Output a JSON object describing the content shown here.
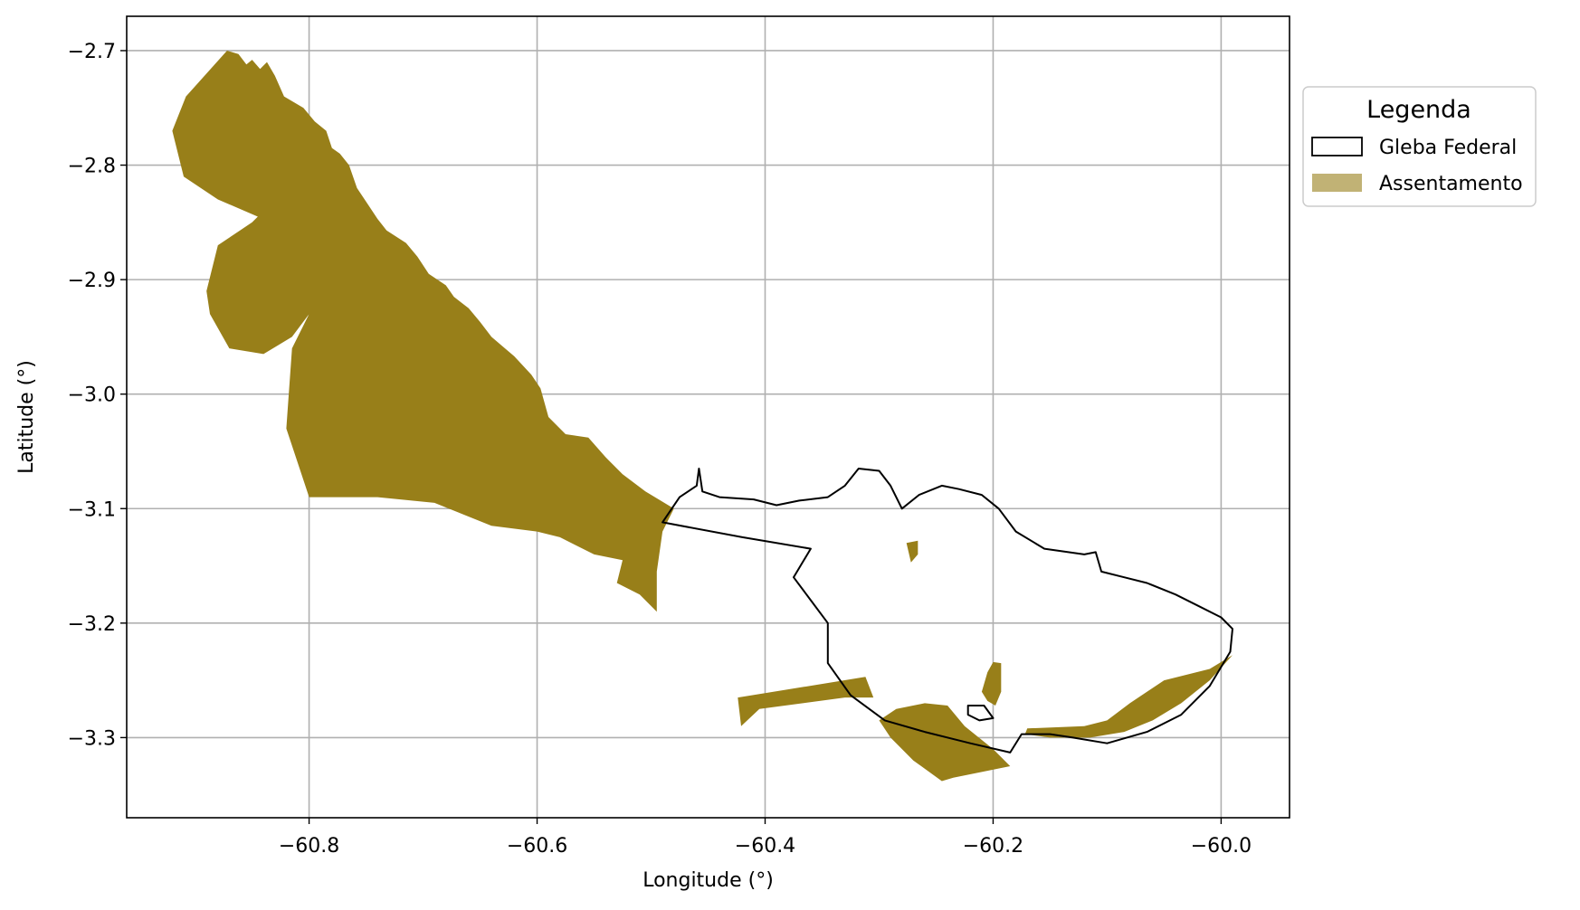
{
  "chart_data": {
    "type": "map",
    "xlabel": "Longitude (°)",
    "ylabel": "Latitude (°)",
    "xlim": [
      -60.96,
      -59.94
    ],
    "ylim": [
      -3.37,
      -2.67
    ],
    "xticks": [
      -60.8,
      -60.6,
      -60.4,
      -60.2,
      -60.0
    ],
    "yticks": [
      -2.7,
      -2.8,
      -2.9,
      -3.0,
      -3.1,
      -3.2,
      -3.3
    ],
    "xtick_labels": [
      "−60.8",
      "−60.6",
      "−60.4",
      "−60.2",
      "−60.0"
    ],
    "ytick_labels": [
      "−2.7",
      "−2.8",
      "−2.9",
      "−3.0",
      "−3.1",
      "−3.2",
      "−3.3"
    ],
    "grid": true,
    "legend": {
      "title": "Legenda",
      "placement": "outside-right-top",
      "entries": [
        {
          "label": "Gleba Federal",
          "style": "outline",
          "color": "#000000"
        },
        {
          "label": "Assentamento",
          "style": "fill",
          "color": "#987f19"
        }
      ]
    },
    "layers": [
      {
        "name": "Assentamento",
        "fill": "#987f19",
        "polygons": [
          [
            [
              -60.872,
              -2.7
            ],
            [
              -60.862,
              -2.703
            ],
            [
              -60.855,
              -2.712
            ],
            [
              -60.85,
              -2.708
            ],
            [
              -60.843,
              -2.716
            ],
            [
              -60.837,
              -2.71
            ],
            [
              -60.83,
              -2.722
            ],
            [
              -60.822,
              -2.74
            ],
            [
              -60.805,
              -2.75
            ],
            [
              -60.795,
              -2.762
            ],
            [
              -60.785,
              -2.77
            ],
            [
              -60.78,
              -2.785
            ],
            [
              -60.773,
              -2.79
            ],
            [
              -60.765,
              -2.8
            ],
            [
              -60.758,
              -2.82
            ],
            [
              -60.748,
              -2.835
            ],
            [
              -60.74,
              -2.847
            ],
            [
              -60.732,
              -2.857
            ],
            [
              -60.715,
              -2.868
            ],
            [
              -60.705,
              -2.88
            ],
            [
              -60.695,
              -2.895
            ],
            [
              -60.68,
              -2.905
            ],
            [
              -60.673,
              -2.915
            ],
            [
              -60.66,
              -2.925
            ],
            [
              -60.65,
              -2.937
            ],
            [
              -60.64,
              -2.95
            ],
            [
              -60.62,
              -2.967
            ],
            [
              -60.605,
              -2.983
            ],
            [
              -60.597,
              -2.995
            ],
            [
              -60.59,
              -3.02
            ],
            [
              -60.575,
              -3.035
            ],
            [
              -60.555,
              -3.038
            ],
            [
              -60.54,
              -3.055
            ],
            [
              -60.525,
              -3.07
            ],
            [
              -60.505,
              -3.085
            ],
            [
              -60.48,
              -3.1
            ],
            [
              -60.49,
              -3.12
            ],
            [
              -60.495,
              -3.155
            ],
            [
              -60.495,
              -3.19
            ],
            [
              -60.51,
              -3.175
            ],
            [
              -60.53,
              -3.165
            ],
            [
              -60.525,
              -3.145
            ],
            [
              -60.55,
              -3.14
            ],
            [
              -60.58,
              -3.125
            ],
            [
              -60.6,
              -3.12
            ],
            [
              -60.64,
              -3.115
            ],
            [
              -60.69,
              -3.095
            ],
            [
              -60.74,
              -3.09
            ],
            [
              -60.8,
              -3.09
            ],
            [
              -60.82,
              -3.03
            ],
            [
              -60.815,
              -2.96
            ],
            [
              -60.8,
              -2.93
            ],
            [
              -60.815,
              -2.95
            ],
            [
              -60.84,
              -2.965
            ],
            [
              -60.87,
              -2.96
            ],
            [
              -60.887,
              -2.93
            ],
            [
              -60.89,
              -2.91
            ],
            [
              -60.88,
              -2.87
            ],
            [
              -60.85,
              -2.85
            ],
            [
              -60.845,
              -2.845
            ],
            [
              -60.88,
              -2.83
            ],
            [
              -60.91,
              -2.81
            ],
            [
              -60.92,
              -2.77
            ],
            [
              -60.908,
              -2.74
            ]
          ],
          [
            [
              -60.424,
              -3.265
            ],
            [
              -60.312,
              -3.247
            ],
            [
              -60.305,
              -3.265
            ],
            [
              -60.33,
              -3.265
            ],
            [
              -60.405,
              -3.275
            ],
            [
              -60.421,
              -3.29
            ]
          ],
          [
            [
              -60.276,
              -3.13
            ],
            [
              -60.266,
              -3.128
            ],
            [
              -60.266,
              -3.14
            ],
            [
              -60.272,
              -3.147
            ]
          ],
          [
            [
              -60.2,
              -3.234
            ],
            [
              -60.193,
              -3.235
            ],
            [
              -60.193,
              -3.26
            ],
            [
              -60.198,
              -3.272
            ],
            [
              -60.205,
              -3.268
            ],
            [
              -60.21,
              -3.26
            ],
            [
              -60.205,
              -3.243
            ]
          ],
          [
            [
              -60.3,
              -3.285
            ],
            [
              -60.285,
              -3.275
            ],
            [
              -60.26,
              -3.27
            ],
            [
              -60.24,
              -3.272
            ],
            [
              -60.225,
              -3.29
            ],
            [
              -60.2,
              -3.31
            ],
            [
              -60.185,
              -3.325
            ],
            [
              -60.21,
              -3.33
            ],
            [
              -60.235,
              -3.335
            ],
            [
              -60.245,
              -3.338
            ],
            [
              -60.27,
              -3.32
            ],
            [
              -60.29,
              -3.3
            ]
          ],
          [
            [
              -60.17,
              -3.292
            ],
            [
              -60.12,
              -3.29
            ],
            [
              -60.1,
              -3.285
            ],
            [
              -60.08,
              -3.27
            ],
            [
              -60.05,
              -3.25
            ],
            [
              -60.01,
              -3.24
            ],
            [
              -59.99,
              -3.228
            ],
            [
              -60.01,
              -3.25
            ],
            [
              -60.035,
              -3.27
            ],
            [
              -60.06,
              -3.285
            ],
            [
              -60.085,
              -3.295
            ],
            [
              -60.115,
              -3.3
            ],
            [
              -60.15,
              -3.3
            ],
            [
              -60.172,
              -3.297
            ]
          ]
        ]
      },
      {
        "name": "Gleba Federal",
        "stroke": "#000000",
        "polygons": [
          [
            [
              -60.49,
              -3.112
            ],
            [
              -60.475,
              -3.09
            ],
            [
              -60.46,
              -3.08
            ],
            [
              -60.458,
              -3.065
            ],
            [
              -60.455,
              -3.085
            ],
            [
              -60.44,
              -3.09
            ],
            [
              -60.41,
              -3.092
            ],
            [
              -60.39,
              -3.097
            ],
            [
              -60.37,
              -3.093
            ],
            [
              -60.345,
              -3.09
            ],
            [
              -60.33,
              -3.08
            ],
            [
              -60.318,
              -3.065
            ],
            [
              -60.3,
              -3.067
            ],
            [
              -60.29,
              -3.08
            ],
            [
              -60.28,
              -3.1
            ],
            [
              -60.265,
              -3.088
            ],
            [
              -60.245,
              -3.08
            ],
            [
              -60.23,
              -3.083
            ],
            [
              -60.21,
              -3.088
            ],
            [
              -60.195,
              -3.1
            ],
            [
              -60.18,
              -3.12
            ],
            [
              -60.155,
              -3.135
            ],
            [
              -60.12,
              -3.14
            ],
            [
              -60.11,
              -3.138
            ],
            [
              -60.105,
              -3.155
            ],
            [
              -60.085,
              -3.16
            ],
            [
              -60.065,
              -3.165
            ],
            [
              -60.04,
              -3.175
            ],
            [
              -60.02,
              -3.185
            ],
            [
              -60.0,
              -3.195
            ],
            [
              -59.99,
              -3.205
            ],
            [
              -59.992,
              -3.225
            ],
            [
              -60.01,
              -3.255
            ],
            [
              -60.035,
              -3.28
            ],
            [
              -60.065,
              -3.295
            ],
            [
              -60.1,
              -3.305
            ],
            [
              -60.13,
              -3.3
            ],
            [
              -60.15,
              -3.297
            ],
            [
              -60.175,
              -3.297
            ],
            [
              -60.185,
              -3.313
            ],
            [
              -60.22,
              -3.305
            ],
            [
              -60.26,
              -3.295
            ],
            [
              -60.295,
              -3.285
            ],
            [
              -60.325,
              -3.263
            ],
            [
              -60.345,
              -3.235
            ],
            [
              -60.345,
              -3.2
            ],
            [
              -60.36,
              -3.18
            ],
            [
              -60.375,
              -3.16
            ],
            [
              -60.36,
              -3.135
            ],
            [
              -60.42,
              -3.125
            ],
            [
              -60.49,
              -3.112
            ]
          ],
          [
            [
              -60.222,
              -3.272
            ],
            [
              -60.208,
              -3.272
            ],
            [
              -60.2,
              -3.283
            ],
            [
              -60.212,
              -3.285
            ],
            [
              -60.222,
              -3.28
            ]
          ]
        ]
      }
    ]
  }
}
